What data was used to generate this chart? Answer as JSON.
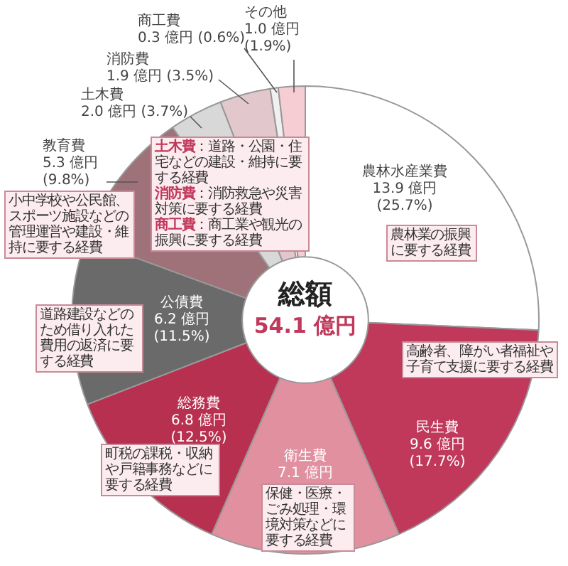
{
  "chart_data": {
    "type": "donut",
    "title": "総額",
    "subtitle": "54.1 億円",
    "categories": [
      "農林水産業費",
      "民生費",
      "衛生費",
      "総務費",
      "公債費",
      "教育費",
      "土木費",
      "消防費",
      "商工費",
      "その他"
    ],
    "values": [
      13.9,
      9.6,
      7.1,
      6.8,
      6.2,
      5.3,
      2.0,
      1.9,
      0.3,
      1.0
    ],
    "colors": [
      "#ffffff",
      "#c0385a",
      "#e0909f",
      "#b8304f",
      "#6a6a6a",
      "#9e7278",
      "#d8d8d8",
      "#e2c8cc",
      "#f0f0f0",
      "#f5cdd3"
    ],
    "value_labels": [
      "13.9 億円 (25.7%)",
      "9.6 億円 (17.7%)",
      "7.1 億円 (13.1%)",
      "6.8 億円 (12.5%)",
      "6.2 億円 (11.5%)",
      "5.3 億円 (9.8%)",
      "2.0 億円 (3.7%)",
      "1.9 億円 (3.5%)",
      "0.3 億円 (0.6%)",
      "1.0 億円 (1.9%)"
    ],
    "annotations": [
      "農林業の振興に要する経費",
      "高齢者、障がい者福祉や子育て支援に要する経費",
      "保健・医療・ごみ処理・環境対策などに要する経費",
      "町税の課税・収納や戸籍事務などに要する経費",
      "道路建設などのため借り入れた費用の返済に要する経費",
      "小中学校や公民館、スポーツ施設などの管理運営や建設・維持に要する経費",
      "土木費：道路・公園・住宅などの建設・維持に要する経費",
      "消防費：消防救急や災害対策に要する経費",
      "商工費：商工業や観光の振興に要する経費"
    ]
  }
}
